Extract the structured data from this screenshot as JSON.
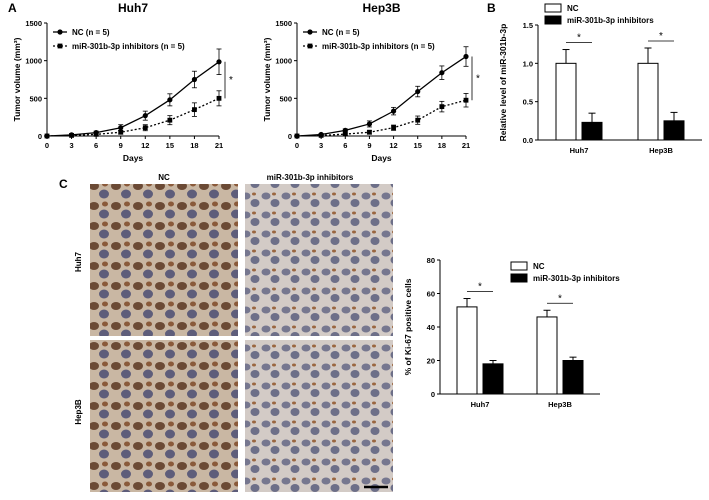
{
  "panels": {
    "A": "A",
    "B": "B",
    "C": "C"
  },
  "chart_data": [
    {
      "id": "huh7_volume",
      "type": "line",
      "title": "Huh7",
      "xlabel": "Days",
      "ylabel": "Tumor volume (mm³)",
      "x": [
        0,
        3,
        6,
        9,
        12,
        15,
        18,
        21
      ],
      "xlim": [
        0,
        21
      ],
      "ylim": [
        0,
        1500
      ],
      "yticks": [
        0,
        500,
        1000,
        1500
      ],
      "legend_position": "top-left",
      "series": [
        {
          "name": "NC (n = 5)",
          "marker": "circle",
          "line": "solid",
          "values": [
            0,
            15,
            45,
            110,
            270,
            480,
            750,
            985
          ],
          "errors": [
            0,
            10,
            20,
            40,
            60,
            80,
            110,
            170
          ]
        },
        {
          "name": "miR-301b-3p inhibitors (n = 5)",
          "marker": "square",
          "line": "dotted",
          "values": [
            0,
            8,
            22,
            50,
            110,
            210,
            350,
            500
          ],
          "errors": [
            0,
            6,
            12,
            25,
            40,
            60,
            90,
            100
          ]
        }
      ],
      "annotation": "*"
    },
    {
      "id": "hep3b_volume",
      "type": "line",
      "title": "Hep3B",
      "xlabel": "Days",
      "ylabel": "Tumor volume (mm³)",
      "x": [
        0,
        3,
        6,
        9,
        12,
        15,
        18,
        21
      ],
      "xlim": [
        0,
        21
      ],
      "ylim": [
        0,
        1500
      ],
      "yticks": [
        0,
        500,
        1000,
        1500
      ],
      "legend_position": "top-left",
      "series": [
        {
          "name": "NC (n = 5)",
          "marker": "circle",
          "line": "solid",
          "values": [
            0,
            20,
            75,
            160,
            330,
            590,
            840,
            1055
          ],
          "errors": [
            0,
            10,
            20,
            40,
            50,
            70,
            90,
            130
          ]
        },
        {
          "name": "miR-301b-3p inhibitors (n = 5)",
          "marker": "square",
          "line": "dotted",
          "values": [
            0,
            8,
            25,
            50,
            110,
            210,
            390,
            475
          ],
          "errors": [
            0,
            6,
            12,
            25,
            35,
            55,
            70,
            90
          ]
        }
      ],
      "annotation": "*"
    },
    {
      "id": "mir_level",
      "type": "bar",
      "ylabel": "Relative level of miR-301b-3p",
      "categories": [
        "Huh7",
        "Hep3B"
      ],
      "ylim": [
        0,
        1.5
      ],
      "yticks": [
        0.0,
        0.5,
        1.0,
        1.5
      ],
      "ytick_labels": [
        "0.0",
        "0.5",
        "1.0",
        "1.5"
      ],
      "legend_position": "top",
      "series": [
        {
          "name": "NC",
          "color": "#ffffff",
          "values": [
            1.0,
            1.0
          ],
          "errors": [
            0.18,
            0.2
          ]
        },
        {
          "name": "miR-301b-3p inhibitors",
          "color": "#000000",
          "values": [
            0.23,
            0.25
          ],
          "errors": [
            0.12,
            0.11
          ]
        }
      ],
      "annotation": "*"
    },
    {
      "id": "ki67",
      "type": "bar",
      "ylabel": "% of Ki-67 positive cells",
      "categories": [
        "Huh7",
        "Hep3B"
      ],
      "ylim": [
        0,
        80
      ],
      "yticks": [
        0,
        20,
        40,
        60,
        80
      ],
      "ytick_labels": [
        "0",
        "20",
        "40",
        "60",
        "80"
      ],
      "legend_position": "top",
      "series": [
        {
          "name": "NC",
          "color": "#ffffff",
          "values": [
            52,
            46
          ],
          "errors": [
            5,
            4
          ]
        },
        {
          "name": "miR-301b-3p inhibitors",
          "color": "#000000",
          "values": [
            18,
            20
          ],
          "errors": [
            2,
            2
          ]
        }
      ],
      "annotation": "*"
    }
  ],
  "histology": {
    "col_labels": [
      "NC",
      "miR-301b-3p inhibitors"
    ],
    "row_labels": [
      "Huh7",
      "Hep3B"
    ]
  }
}
